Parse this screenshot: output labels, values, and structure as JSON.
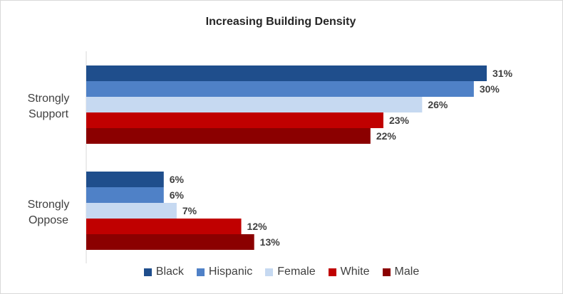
{
  "chart_data": {
    "type": "bar",
    "orientation": "horizontal",
    "title": "Increasing Building Density",
    "categories": [
      "Strongly Support",
      "Strongly Oppose"
    ],
    "category_lines": [
      [
        "Strongly",
        "Support"
      ],
      [
        "Strongly",
        "Oppose"
      ]
    ],
    "series": [
      {
        "name": "Black",
        "color": "#1f4e8c",
        "values": [
          31,
          6
        ],
        "labels": [
          "31%",
          "6%"
        ]
      },
      {
        "name": "Hispanic",
        "color": "#4f81c7",
        "values": [
          30,
          6
        ],
        "labels": [
          "30%",
          "6%"
        ]
      },
      {
        "name": "Female",
        "color": "#c6d9f1",
        "values": [
          26,
          7
        ],
        "labels": [
          "26%",
          "7%"
        ]
      },
      {
        "name": "White",
        "color": "#c00000",
        "values": [
          23,
          12
        ],
        "labels": [
          "23%",
          "12%"
        ]
      },
      {
        "name": "Male",
        "color": "#8b0000",
        "values": [
          22,
          13
        ],
        "labels": [
          "22%",
          "13%"
        ]
      }
    ],
    "xlim": [
      0,
      31
    ],
    "legend_position": "bottom"
  }
}
